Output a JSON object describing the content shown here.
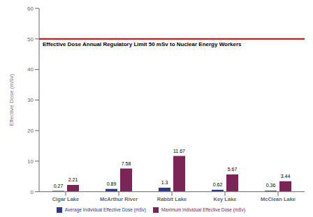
{
  "chart_data": {
    "type": "bar",
    "categories": [
      "Cigar Lake",
      "McArthur River",
      "Rabbit Lake",
      "Key Lake",
      "McClean Lake"
    ],
    "series": [
      {
        "name": "Average Individual Effective Dose (mSv)",
        "color": "#2b3990",
        "values": [
          0.27,
          0.89,
          1.3,
          0.62,
          0.36
        ]
      },
      {
        "name": "Maximum Individual Effective Dose (mSv)",
        "color": "#7b2457",
        "values": [
          2.21,
          7.58,
          11.67,
          5.67,
          3.44
        ]
      }
    ],
    "ylabel": "Effective Dose (mSv)",
    "ylim": [
      0,
      60
    ],
    "yticks": [
      0,
      10,
      20,
      30,
      40,
      50,
      60
    ],
    "reference_lines": [
      {
        "y": 50,
        "color": "#cc0000",
        "label": "Effective Dose Annual Regulatory Limit 50 mSv to Nuclear Energy Workers"
      }
    ],
    "grid": false,
    "data_labels": true,
    "legend": "bottom"
  }
}
